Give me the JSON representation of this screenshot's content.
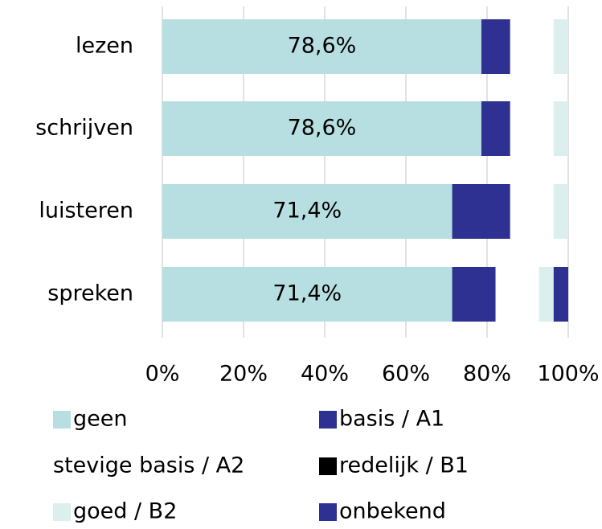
{
  "chart_data": {
    "type": "stacked_bar_horizontal",
    "categories": [
      "lezen",
      "schrijven",
      "luisteren",
      "spreken"
    ],
    "series": [
      {
        "name": "geen",
        "color": "#b7dfe1",
        "values": [
          78.6,
          78.6,
          71.4,
          71.4
        ],
        "value_labels": [
          "78,6%",
          "78,6%",
          "71,4%",
          "71,4%"
        ]
      },
      {
        "name": "basis / A1",
        "color": "#2e3092",
        "values": [
          7.1,
          7.1,
          14.3,
          10.7
        ]
      },
      {
        "name": "stevige basis / A2",
        "color": "#ffffff",
        "values": [
          10.7,
          10.7,
          10.7,
          10.7
        ]
      },
      {
        "name": "redelijk / B1",
        "color": "#000000",
        "values": [
          0,
          0,
          0,
          0
        ]
      },
      {
        "name": "goed / B2",
        "color": "#dcefef",
        "values": [
          3.6,
          3.6,
          3.6,
          3.6
        ]
      },
      {
        "name": "onbekend",
        "color": "#2e3092",
        "values": [
          0,
          0,
          0,
          3.6
        ]
      }
    ],
    "xlim": [
      0,
      100
    ],
    "xticks": [
      {
        "value": 0,
        "label": "0%"
      },
      {
        "value": 20,
        "label": "20%"
      },
      {
        "value": 40,
        "label": "40%"
      },
      {
        "value": 60,
        "label": "60%"
      },
      {
        "value": 80,
        "label": "80%"
      },
      {
        "value": 100,
        "label": "100%"
      }
    ],
    "grid": true
  }
}
